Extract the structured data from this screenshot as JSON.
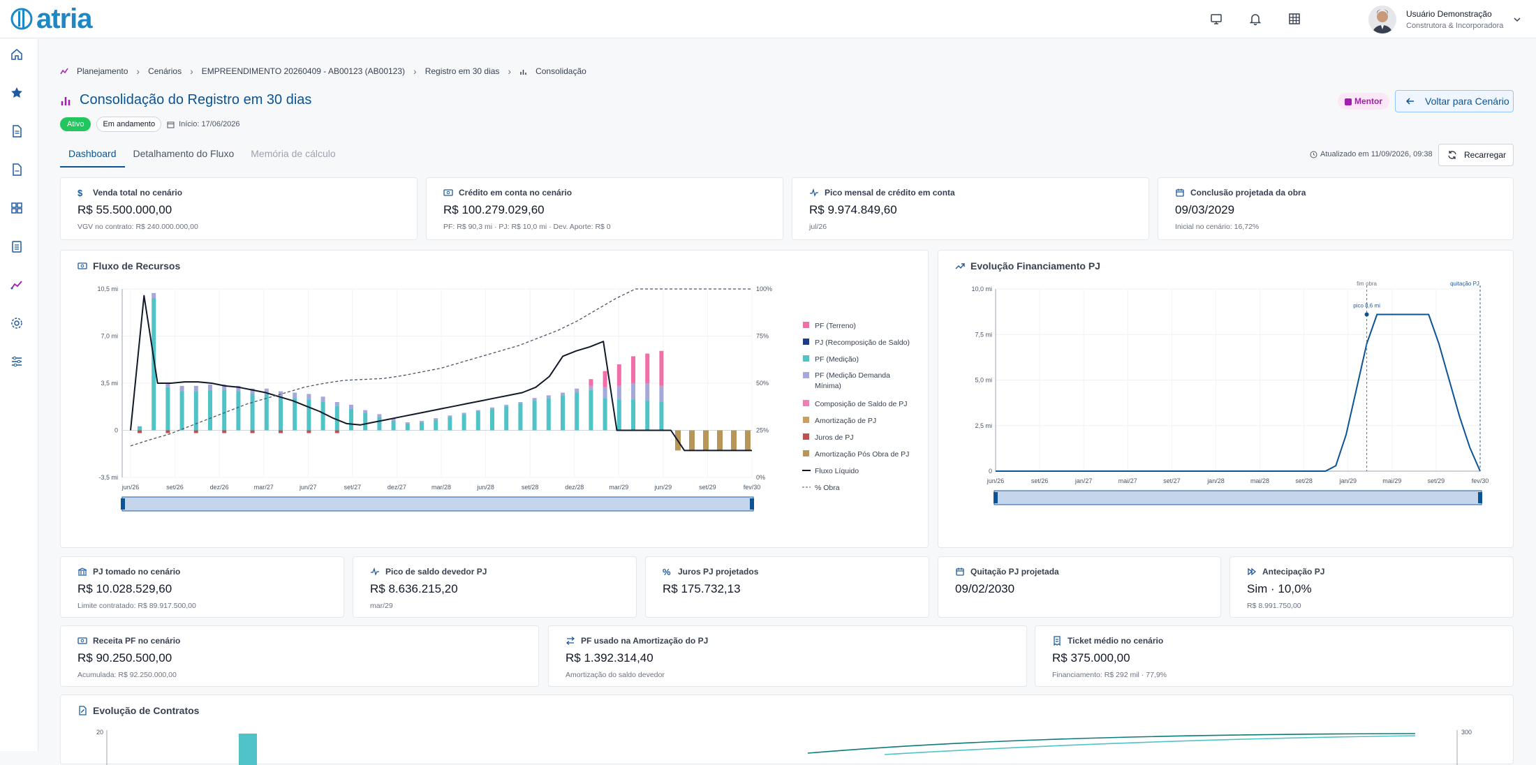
{
  "app": {
    "logo": "atria"
  },
  "user": {
    "name": "Usuário Demonstração",
    "role": "Construtora & Incorporadora"
  },
  "breadcrumb": [
    "Planejamento",
    "Cenários",
    "EMPREENDIMENTO 20260409 - AB00123 (AB00123)",
    "Registro em 30 dias",
    "Consolidação"
  ],
  "page": {
    "title": "Consolidação do Registro em 30 dias",
    "status_active": "Ativo",
    "status_progress": "Em andamento",
    "start": "Início: 17/06/2026",
    "mentor": "Mentor",
    "back_button": "Voltar para Cenário"
  },
  "tabs": [
    "Dashboard",
    "Detalhamento do Fluxo",
    "Memória de cálculo"
  ],
  "toolbar": {
    "updated": "Atualizado em 11/09/2026, 09:38",
    "reload": "Recarregar"
  },
  "kpis_top": [
    {
      "label": "Venda total no cenário",
      "value": "R$ 55.500.000,00",
      "sub": "VGV no contrato: R$ 240.000.000,00",
      "icon": "dollar-icon"
    },
    {
      "label": "Crédito em conta no cenário",
      "value": "R$ 100.279.029,60",
      "sub": "PF: R$ 90,3 mi  ·  PJ: R$ 10,0 mi  ·  Dev. Aporte: R$ 0",
      "icon": "money-icon"
    },
    {
      "label": "Pico mensal de crédito em conta",
      "value": "R$ 9.974.849,60",
      "sub": "jul/26",
      "icon": "activity-icon"
    },
    {
      "label": "Conclusão projetada da obra",
      "value": "09/03/2029",
      "sub": "Inicial no cenário: 16,72%",
      "icon": "calendar-icon"
    }
  ],
  "kpis_mid": [
    {
      "label": "PJ tomado no cenário",
      "value": "R$ 10.028.529,60",
      "sub": "Limite contratado: R$ 89.917.500,00",
      "icon": "bank-icon"
    },
    {
      "label": "Pico de saldo devedor PJ",
      "value": "R$ 8.636.215,20",
      "sub": "mar/29",
      "icon": "activity-icon"
    },
    {
      "label": "Juros PJ projetados",
      "value": "R$ 175.732,13",
      "sub": "",
      "icon": "percent-icon"
    },
    {
      "label": "Quitação PJ projetada",
      "value": "09/02/2030",
      "sub": "",
      "icon": "calendar-icon"
    },
    {
      "label": "Antecipação PJ",
      "value": "Sim · 10,0%",
      "sub": "R$ 8.991.750,00",
      "icon": "fast-forward-icon"
    }
  ],
  "kpis_bottom": [
    {
      "label": "Receita PF no cenário",
      "value": "R$ 90.250.500,00",
      "sub": "Acumulada: R$ 92.250.000,00",
      "icon": "money-icon"
    },
    {
      "label": "PF usado na Amortização do PJ",
      "value": "R$ 1.392.314,40",
      "sub": "Amortização do saldo devedor",
      "icon": "swap-icon"
    },
    {
      "label": "Ticket médio no cenário",
      "value": "R$ 375.000,00",
      "sub": "Financiamento: R$ 292 mil · 77,9%",
      "icon": "receipt-icon"
    }
  ],
  "panels": {
    "flow": "Fluxo de Recursos",
    "pj": "Evolução Financiamento PJ",
    "contracts": "Evolução de Contratos"
  },
  "colors": {
    "primary": "#0b5394",
    "pf_terreno": "#f06fa8",
    "pj_recomp": "#1e3a8a",
    "pf_medicao": "#4fc3c7",
    "pf_demanda": "#a5a8d8",
    "comp_saldo": "#ec7fb5",
    "amort_pj": "#c8a060",
    "juros": "#c0504d",
    "amort_pos": "#b8965a"
  },
  "chart_data": [
    {
      "type": "bar",
      "title": "Fluxo de Recursos",
      "x_ticks": [
        "jun/26",
        "set/26",
        "dez/26",
        "mar/27",
        "jun/27",
        "set/27",
        "dez/27",
        "mar/28",
        "jun/28",
        "set/28",
        "dez/28",
        "mar/29",
        "jun/29",
        "set/29",
        "fev/30"
      ],
      "y_ticks": [
        "10,5 mi",
        "7,0 mi",
        "3,5 mi",
        "0",
        "-3,5 mi"
      ],
      "y2_ticks": [
        "100%",
        "75%",
        "50%",
        "25%",
        "0%"
      ],
      "ylim": [
        -3.5,
        10.5
      ],
      "legend_position": "right",
      "series": [
        {
          "name": "PF (Terreno)",
          "style": "bar"
        },
        {
          "name": "PJ (Recomposição de Saldo)",
          "style": "bar"
        },
        {
          "name": "PF (Medição)",
          "style": "bar"
        },
        {
          "name": "PF (Medição Demanda Mínima)",
          "style": "bar"
        },
        {
          "name": "Composição de Saldo de PJ",
          "style": "bar"
        },
        {
          "name": "Amortização de PJ",
          "style": "bar"
        },
        {
          "name": "Juros de PJ",
          "style": "bar"
        },
        {
          "name": "Amortização Pós Obra de PJ",
          "style": "bar"
        },
        {
          "name": "Fluxo Líquido",
          "style": "line"
        },
        {
          "name": "% Obra",
          "style": "dashed"
        }
      ],
      "bars_medicao": [
        0.3,
        9.8,
        3.2,
        2.9,
        2.9,
        3.0,
        3.0,
        2.9,
        2.7,
        2.7,
        2.5,
        2.4,
        2.3,
        2.1,
        1.8,
        1.6,
        1.3,
        1.0,
        0.7,
        0.5,
        0.6,
        0.8,
        1.0,
        1.2,
        1.4,
        1.6,
        1.8,
        2.0,
        2.2,
        2.4,
        2.6,
        2.8,
        3.0,
        2.4,
        2.3,
        2.3,
        2.2,
        2.1
      ],
      "bars_demanda": [
        0,
        0.4,
        0.3,
        0.4,
        0.4,
        0.4,
        0.4,
        0.4,
        0.4,
        0.4,
        0.4,
        0.4,
        0.4,
        0.4,
        0.3,
        0.3,
        0.2,
        0.2,
        0.2,
        0.1,
        0.1,
        0.1,
        0.1,
        0.1,
        0.1,
        0.1,
        0.1,
        0.1,
        0.2,
        0.2,
        0.2,
        0.3,
        0.3,
        0.8,
        1.0,
        1.2,
        1.3,
        1.2
      ],
      "bars_terreno": [
        0,
        0,
        0,
        0,
        0,
        0,
        0,
        0,
        0,
        0,
        0,
        0,
        0,
        0,
        0,
        0,
        0,
        0,
        0,
        0,
        0,
        0,
        0,
        0,
        0,
        0,
        0,
        0,
        0,
        0,
        0,
        0,
        0.5,
        1.2,
        1.6,
        2.0,
        2.2,
        2.6
      ],
      "bars_amort_pos": [
        -1.5,
        -1.5,
        -1.5,
        -1.5,
        -1.5,
        -1.5
      ],
      "net_flow": [
        0,
        10.0,
        3.5,
        3.5,
        3.6,
        3.6,
        3.5,
        3.3,
        3.2,
        3.0,
        2.8,
        2.5,
        2.2,
        1.8,
        1.4,
        0.9,
        0.5,
        0.4,
        0.6,
        0.8,
        1.0,
        1.2,
        1.4,
        1.6,
        1.8,
        2.0,
        2.2,
        2.4,
        2.6,
        2.8,
        3.2,
        4.0,
        5.5,
        5.9,
        6.2,
        6.6,
        0,
        0,
        0,
        0,
        0,
        -1.5,
        -1.5,
        -1.5,
        -1.5,
        -1.5,
        -1.5
      ],
      "pct_obra": [
        16.7,
        20,
        23,
        27,
        31,
        35,
        39,
        42,
        45,
        48,
        50,
        51.5,
        52,
        52.5,
        54,
        56,
        58,
        61,
        64,
        67,
        70,
        74,
        78,
        83,
        89,
        95,
        100,
        100,
        100,
        100,
        100,
        100,
        100
      ]
    },
    {
      "type": "line",
      "title": "Evolução Financiamento PJ",
      "x_ticks": [
        "jun/26",
        "set/26",
        "jan/27",
        "mai/27",
        "set/27",
        "jan/28",
        "mai/28",
        "set/28",
        "jan/29",
        "mai/29",
        "set/29",
        "fev/30"
      ],
      "y_ticks": [
        "10,0 mi",
        "7,5 mi",
        "5,0 mi",
        "2,5 mi",
        "0"
      ],
      "ylim": [
        0,
        10
      ],
      "annotations": [
        "fim obra",
        "quitação PJ",
        "pico 8,6 mi"
      ],
      "series": [
        {
          "name": "Saldo PJ",
          "values": [
            0,
            0,
            0,
            0,
            0,
            0,
            0,
            0,
            0,
            0,
            0,
            0,
            0,
            0,
            0,
            0,
            0,
            0,
            0,
            0,
            0,
            0,
            0,
            0,
            0,
            0,
            0,
            0,
            0,
            0,
            0,
            0,
            0,
            0.3,
            2.0,
            4.5,
            7.0,
            8.6,
            8.6,
            8.6,
            8.6,
            8.6,
            8.6,
            7.0,
            5.0,
            3.0,
            1.3,
            0
          ]
        }
      ]
    },
    {
      "type": "bar",
      "title": "Evolução de Contratos",
      "y_ticks": [
        "20"
      ],
      "y2_ticks": [
        "300"
      ]
    }
  ]
}
